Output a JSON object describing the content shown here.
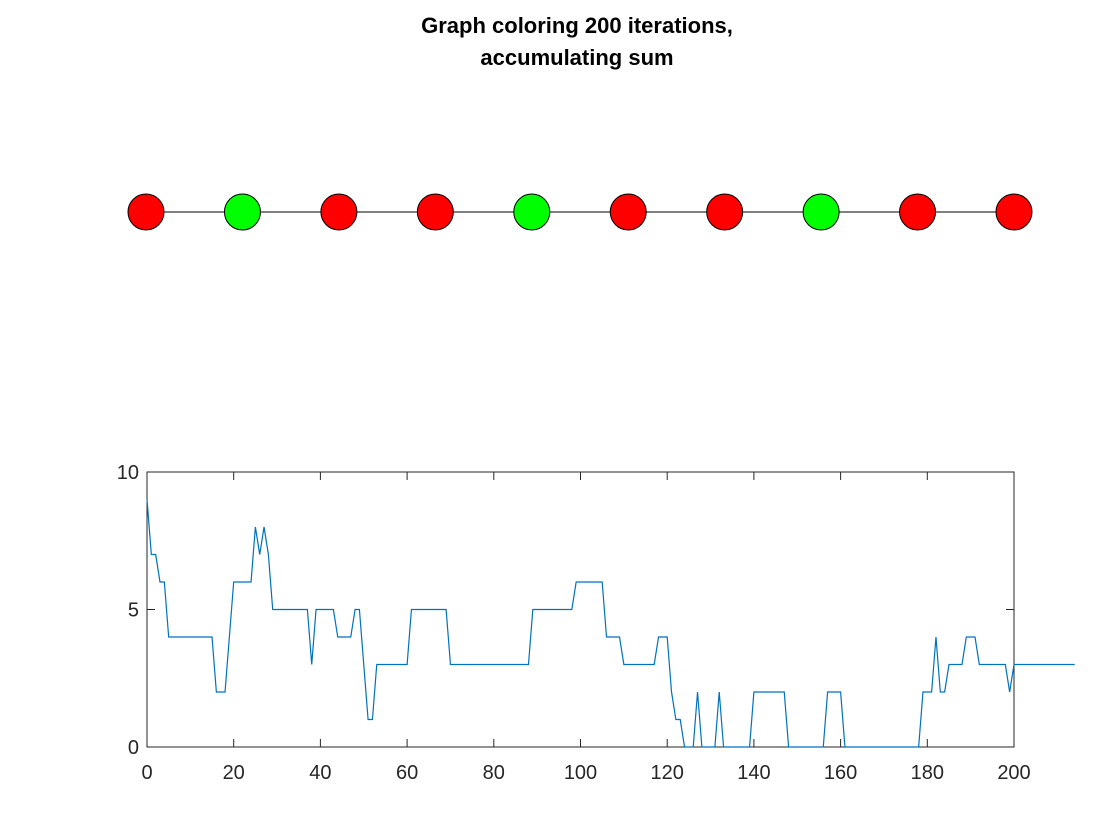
{
  "figure": {
    "title_line1": "Graph coloring 200 iterations,",
    "title_line2": "accumulating sum"
  },
  "colors": {
    "red": "#ff0000",
    "green": "#00ff00",
    "edge": "#000000",
    "line": "#0072bd"
  },
  "chart_data": [
    {
      "type": "graph",
      "description": "path graph of 10 colored nodes",
      "node_colors": [
        "red",
        "green",
        "red",
        "red",
        "green",
        "red",
        "red",
        "green",
        "red",
        "red"
      ]
    },
    {
      "type": "line",
      "xlabel": "",
      "ylabel": "",
      "xlim": [
        0,
        200
      ],
      "ylim": [
        0,
        10
      ],
      "x_ticks": [
        "0",
        "20",
        "40",
        "60",
        "80",
        "100",
        "120",
        "140",
        "160",
        "180",
        "200"
      ],
      "y_ticks": [
        "0",
        "5",
        "10"
      ],
      "grid": false,
      "series": [
        {
          "values": [
            9,
            7,
            7,
            6,
            6,
            4,
            4,
            4,
            4,
            4,
            4,
            4,
            4,
            4,
            4,
            4,
            2,
            2,
            2,
            4,
            6,
            6,
            6,
            6,
            6,
            8,
            7,
            8,
            7,
            5,
            5,
            5,
            5,
            5,
            5,
            5,
            5,
            5,
            3,
            5,
            5,
            5,
            5,
            5,
            4,
            4,
            4,
            4,
            5,
            5,
            3,
            1,
            1,
            3,
            3,
            3,
            3,
            3,
            3,
            3,
            3,
            5,
            5,
            5,
            5,
            5,
            5,
            5,
            5,
            5,
            3,
            3,
            3,
            3,
            3,
            3,
            3,
            3,
            3,
            3,
            3,
            3,
            3,
            3,
            3,
            3,
            3,
            3,
            3,
            5,
            5,
            5,
            5,
            5,
            5,
            5,
            5,
            5,
            5,
            6,
            6,
            6,
            6,
            6,
            6,
            6,
            4,
            4,
            4,
            4,
            3,
            3,
            3,
            3,
            3,
            3,
            3,
            3,
            4,
            4,
            4,
            2,
            1,
            1,
            0,
            0,
            0,
            2,
            0,
            0,
            0,
            0,
            2,
            0,
            0,
            0,
            0,
            0,
            0,
            0,
            2,
            2,
            2,
            2,
            2,
            2,
            2,
            2,
            0,
            0,
            0,
            0,
            0,
            0,
            0,
            0,
            0,
            2,
            2,
            2,
            2,
            0,
            0,
            0,
            0,
            0,
            0,
            0,
            0,
            0,
            0,
            0,
            0,
            0,
            0,
            0,
            0,
            0,
            0,
            2,
            2,
            2,
            4,
            2,
            2,
            3,
            3,
            3,
            3,
            4,
            4,
            4,
            3,
            3,
            3,
            3,
            3,
            3,
            3,
            2,
            3,
            3,
            3,
            3,
            3,
            3,
            3,
            3,
            3,
            3,
            3,
            3,
            3,
            3,
            3
          ]
        }
      ]
    }
  ]
}
